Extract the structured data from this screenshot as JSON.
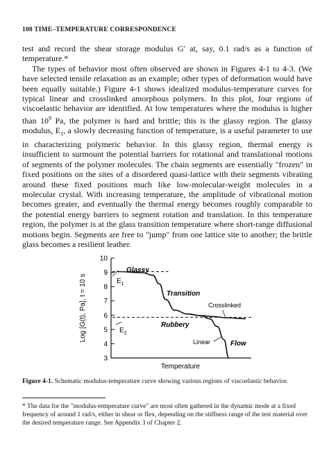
{
  "header": {
    "running_head": "108  TIME–TEMPERATURE CORRESPONDENCE"
  },
  "body": {
    "p1": "test and record the shear storage modulus G′ at, say, 0.1 rad/s as a function of temperature.*",
    "p2_part1": "The types of behavior most often observed are shown in Figures 4-1 to 4-3. (We have selected tensile relaxation as an example; other types of deformation would have been equally suitable.) Figure 4-1 shows idealized modulus-temperature curves for typical linear and crosslinked amorphous polymers. In this plot, four regions of viscoelastic behavior are identified. At low temperatures where the modulus is higher than 10",
    "p2_exp": "9",
    "p2_part2": " Pa, the polymer is hard and brittle; this is the glassy region. The glassy modulus, E",
    "p2_sub": "1",
    "p2_part3": ", a slowly decreasing function of temperature, is a useful parameter to use in characterizing polymeric behavior. In this glassy region, thermal energy is insufficient to surmount the potential barriers for rotational and translational motions of segments of the polymer molecules. The chain segments are essentially \"frozen\" in fixed positions on the sites of a disordered quasi-lattice with their segments vibrating around these fixed positions much like low-molecular-weight molecules in a molecular crystal. With increasing temperature, the amplitude of vibrational motion becomes greater, and eventually the thermal energy becomes roughly comparable to the potential energy barriers to segment rotation and translation. In this temperature region, the polymer is at the glass transition temperature where short-range diffusional motions begin. Segments are free to \"jump\" from one lattice site to another; the brittle glass becomes a resilient leather."
  },
  "figure": {
    "ylabel": "Log [G(t), Pa], t = 10 s",
    "xlabel": "Temperature",
    "region_glassy": "Glassy",
    "region_transition": "Transition",
    "region_rubbery": "Rubbery",
    "region_flow": "Flow",
    "label_crosslinked": "Crosslinked",
    "label_linear": "Linear",
    "label_e1": "E",
    "label_e1_sub": "1",
    "label_e2": "E",
    "label_e2_sub": "2"
  },
  "caption": {
    "label": "Figure 4-1.",
    "text": "  Schematic modulus-temperature curve showing various regions of viscoelastic behavior."
  },
  "footnote": {
    "text": "* The data for the \"modulus-temperature curve\" are most often gathered in the dynamic mode at a fixed frequency of around 1 rad/s, either in shear or flex, depending on the stiffness range of the test material over the desired temperature range. See Appendix 3 of Chapter 2."
  },
  "chart_data": {
    "type": "line",
    "title": "",
    "xlabel": "Temperature",
    "ylabel": "Log [G(t), Pa], t = 10 s",
    "ylim": [
      3,
      10
    ],
    "yticks": [
      3,
      4,
      5,
      6,
      7,
      8,
      9,
      10
    ],
    "x_ticks": [],
    "grid": false,
    "series": [
      {
        "name": "Crosslinked",
        "x": [
          0,
          0.2,
          0.28,
          0.33,
          0.38,
          0.45,
          0.55,
          0.65,
          0.75,
          0.85,
          1.0
        ],
        "values": [
          9.05,
          8.98,
          8.8,
          8.2,
          7.1,
          6.35,
          6.08,
          5.97,
          5.9,
          5.82,
          5.75
        ]
      },
      {
        "name": "Linear",
        "x": [
          0.55,
          0.65,
          0.72,
          0.78,
          0.83,
          0.87
        ],
        "values": [
          6.08,
          5.97,
          5.75,
          5.2,
          4.3,
          3.0
        ]
      }
    ],
    "reference_lines": [
      {
        "label": "E1",
        "y": 9.05
      },
      {
        "label": "E2",
        "y": 5.85
      }
    ],
    "regions": [
      "Glassy",
      "Transition",
      "Rubbery",
      "Flow"
    ]
  }
}
